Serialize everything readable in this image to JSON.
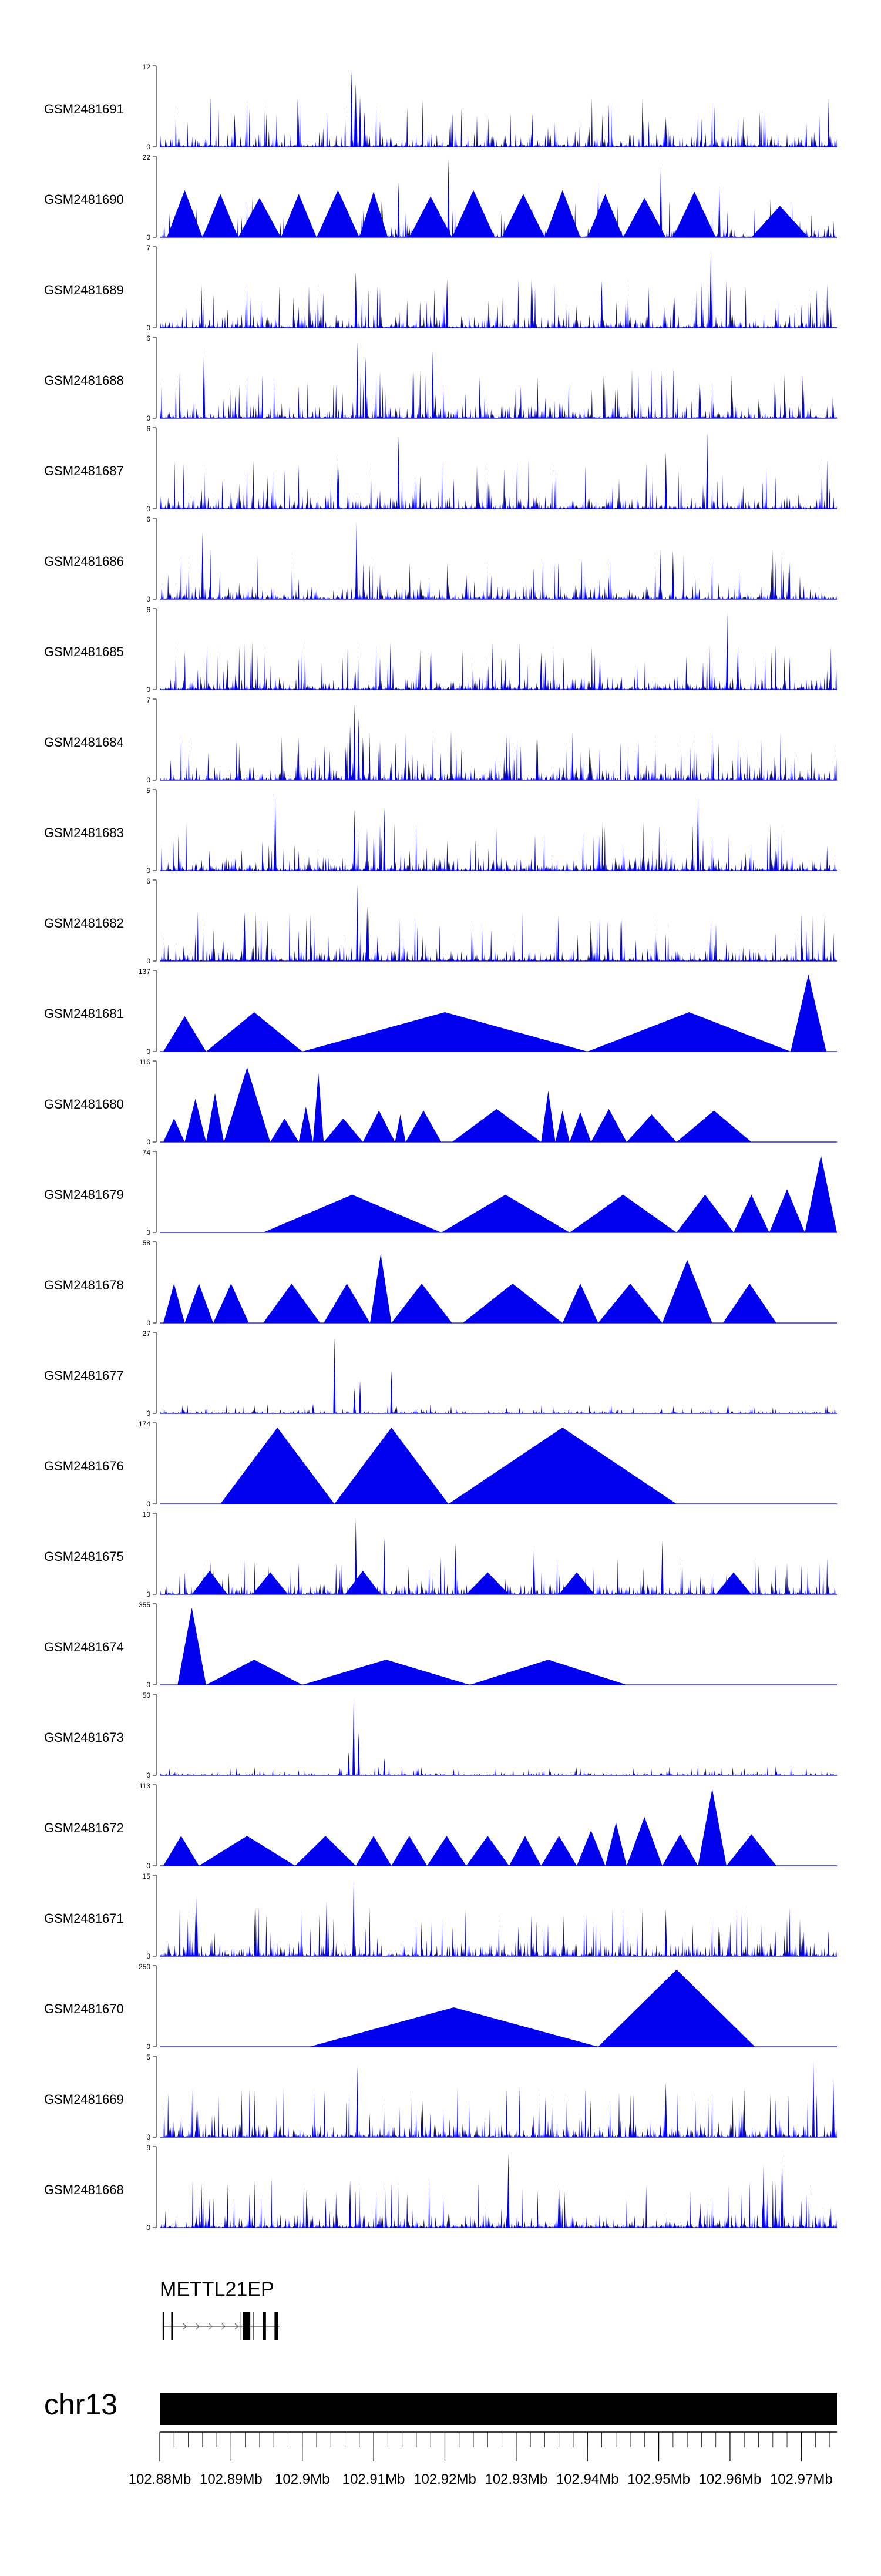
{
  "chart_data": {
    "type": "area",
    "title": "",
    "chromosome": "chr13",
    "gene": "METTL21EP",
    "xlabel": "",
    "x_unit": "Mb",
    "xlim": [
      102.88,
      102.975
    ],
    "x_tick_labels": [
      "102.88Mb",
      "102.89Mb",
      "102.9Mb",
      "102.91Mb",
      "102.92Mb",
      "102.93Mb",
      "102.94Mb",
      "102.95Mb",
      "102.96Mb",
      "102.97Mb"
    ],
    "x_tick_values": [
      102.88,
      102.89,
      102.9,
      102.91,
      102.92,
      102.93,
      102.94,
      102.95,
      102.96,
      102.97
    ],
    "fill_color": "#0000ee",
    "tracks": [
      {
        "name": "GSM2481691",
        "ymax": "12",
        "ymin": "0",
        "style": "dense",
        "spikes": [
          [
            102.9069,
            0.97
          ],
          [
            102.9075,
            0.82
          ],
          [
            102.9081,
            0.65
          ],
          [
            102.9087,
            0.45
          ],
          [
            102.8905,
            0.42
          ],
          [
            102.951,
            0.38
          ]
        ]
      },
      {
        "name": "GSM2481690",
        "ymax": "22",
        "ymin": "0",
        "style": "mixed",
        "tri": [
          [
            102.881,
            102.886,
            0.6
          ],
          [
            102.886,
            102.891,
            0.55
          ],
          [
            102.891,
            102.897,
            0.5
          ],
          [
            102.897,
            102.902,
            0.55
          ],
          [
            102.902,
            102.908,
            0.6
          ],
          [
            102.908,
            102.912,
            0.58
          ],
          [
            102.915,
            102.921,
            0.52
          ],
          [
            102.921,
            102.927,
            0.6
          ],
          [
            102.928,
            102.934,
            0.55
          ],
          [
            102.934,
            102.939,
            0.6
          ],
          [
            102.94,
            102.945,
            0.55
          ],
          [
            102.945,
            102.951,
            0.5
          ],
          [
            102.952,
            102.958,
            0.58
          ],
          [
            102.963,
            102.971,
            0.4
          ]
        ],
        "spikes": [
          [
            102.9205,
            1.0
          ],
          [
            102.9503,
            0.98
          ],
          [
            102.9135,
            0.7
          ],
          [
            102.9415,
            0.7
          ],
          [
            102.9585,
            0.66
          ]
        ]
      },
      {
        "name": "GSM2481689",
        "ymax": "7",
        "ymin": "0",
        "style": "dense",
        "spikes": [
          [
            102.9573,
            0.98
          ],
          [
            102.9075,
            0.72
          ],
          [
            102.9203,
            0.62
          ],
          [
            102.942,
            0.6
          ]
        ]
      },
      {
        "name": "GSM2481688",
        "ymax": "6",
        "ymin": "0",
        "style": "dense",
        "spikes": [
          [
            102.9077,
            0.97
          ],
          [
            102.8862,
            0.9
          ],
          [
            102.9183,
            0.85
          ],
          [
            102.9089,
            0.78
          ]
        ]
      },
      {
        "name": "GSM2481687",
        "ymax": "6",
        "ymin": "0",
        "style": "dense",
        "spikes": [
          [
            102.9568,
            0.97
          ],
          [
            102.9135,
            0.92
          ],
          [
            102.905,
            0.7
          ],
          [
            102.951,
            0.72
          ]
        ]
      },
      {
        "name": "GSM2481686",
        "ymax": "6",
        "ymin": "0",
        "style": "dense",
        "spikes": [
          [
            102.9076,
            0.98
          ],
          [
            102.886,
            0.85
          ],
          [
            102.952,
            0.62
          ]
        ]
      },
      {
        "name": "GSM2481685",
        "ymax": "6",
        "ymin": "0",
        "style": "dense",
        "spikes": [
          [
            102.9596,
            0.98
          ],
          [
            102.9611,
            0.55
          ],
          [
            102.9335,
            0.48
          ]
        ]
      },
      {
        "name": "GSM2481684",
        "ymax": "7",
        "ymin": "0",
        "style": "dense",
        "spikes": [
          [
            102.9073,
            0.97
          ],
          [
            102.9079,
            0.8
          ],
          [
            102.9067,
            0.7
          ],
          [
            102.9085,
            0.55
          ],
          [
            102.9061,
            0.42
          ]
        ]
      },
      {
        "name": "GSM2481683",
        "ymax": "5",
        "ymin": "0",
        "style": "dense",
        "spikes": [
          [
            102.8962,
            0.98
          ],
          [
            102.9555,
            0.96
          ],
          [
            102.9115,
            0.8
          ],
          [
            102.9073,
            0.78
          ]
        ]
      },
      {
        "name": "GSM2481682",
        "ymax": "6",
        "ymin": "0",
        "style": "dense",
        "spikes": [
          [
            102.9077,
            0.97
          ],
          [
            102.9091,
            0.7
          ],
          [
            102.8919,
            0.62
          ]
        ]
      },
      {
        "name": "GSM2481681",
        "ymax": "137",
        "ymin": "0",
        "style": "triangles",
        "tri": [
          [
            102.8805,
            102.8865,
            0.45
          ],
          [
            102.8865,
            102.9,
            0.5
          ],
          [
            102.9,
            102.94,
            0.5
          ],
          [
            102.94,
            102.9685,
            0.5
          ],
          [
            102.9685,
            102.9735,
            0.98
          ]
        ]
      },
      {
        "name": "GSM2481680",
        "ymax": "116",
        "ymin": "0",
        "style": "triangles",
        "tri": [
          [
            102.8805,
            102.8835,
            0.3
          ],
          [
            102.8835,
            102.8865,
            0.55
          ],
          [
            102.8865,
            102.889,
            0.62
          ],
          [
            102.889,
            102.8955,
            0.95
          ],
          [
            102.8955,
            102.8995,
            0.3
          ],
          [
            102.8995,
            102.9015,
            0.45
          ],
          [
            102.9015,
            102.903,
            0.88
          ],
          [
            102.903,
            102.9085,
            0.3
          ],
          [
            102.9085,
            102.913,
            0.4
          ],
          [
            102.913,
            102.9145,
            0.35
          ],
          [
            102.9145,
            102.9195,
            0.4
          ],
          [
            102.921,
            102.9335,
            0.42
          ],
          [
            102.9335,
            102.9355,
            0.65
          ],
          [
            102.9355,
            102.9375,
            0.4
          ],
          [
            102.9375,
            102.9405,
            0.38
          ],
          [
            102.9405,
            102.9455,
            0.42
          ],
          [
            102.9455,
            102.9525,
            0.35
          ],
          [
            102.9525,
            102.963,
            0.4
          ]
        ]
      },
      {
        "name": "GSM2481679",
        "ymax": "74",
        "ymin": "0",
        "style": "triangles",
        "tri": [
          [
            102.8945,
            102.9195,
            0.48
          ],
          [
            102.9195,
            102.9375,
            0.48
          ],
          [
            102.9375,
            102.9525,
            0.48
          ],
          [
            102.9525,
            102.9605,
            0.48
          ],
          [
            102.9605,
            102.9655,
            0.48
          ],
          [
            102.9655,
            102.9705,
            0.55
          ],
          [
            102.9705,
            102.975,
            0.98
          ]
        ]
      },
      {
        "name": "GSM2481678",
        "ymax": "58",
        "ymin": "0",
        "style": "triangles",
        "tri": [
          [
            102.8805,
            102.8835,
            0.5
          ],
          [
            102.8835,
            102.8875,
            0.5
          ],
          [
            102.8875,
            102.8925,
            0.5
          ],
          [
            102.8945,
            102.9025,
            0.5
          ],
          [
            102.903,
            102.9095,
            0.5
          ],
          [
            102.9095,
            102.9125,
            0.88
          ],
          [
            102.9125,
            102.921,
            0.5
          ],
          [
            102.9225,
            102.9365,
            0.5
          ],
          [
            102.9365,
            102.9415,
            0.5
          ],
          [
            102.9415,
            102.9505,
            0.5
          ],
          [
            102.9505,
            102.9575,
            0.8
          ],
          [
            102.959,
            102.9665,
            0.5
          ]
        ]
      },
      {
        "name": "GSM2481677",
        "ymax": "27",
        "ymin": "0",
        "style": "sparse",
        "spikes": [
          [
            102.9045,
            0.97
          ],
          [
            102.9081,
            0.42
          ],
          [
            102.9125,
            0.55
          ],
          [
            102.9073,
            0.32
          ],
          [
            102.9015,
            0.12
          ]
        ]
      },
      {
        "name": "GSM2481676",
        "ymax": "174",
        "ymin": "0",
        "style": "triangles",
        "tri": [
          [
            102.8885,
            102.9045,
            0.97
          ],
          [
            102.9045,
            102.9205,
            0.97
          ],
          [
            102.9205,
            102.9525,
            0.97
          ]
        ]
      },
      {
        "name": "GSM2481675",
        "ymax": "10",
        "ymin": "0",
        "style": "mixed",
        "tri": [
          [
            102.8845,
            102.8895,
            0.3
          ],
          [
            102.893,
            102.898,
            0.28
          ],
          [
            102.906,
            102.911,
            0.3
          ],
          [
            102.923,
            102.929,
            0.28
          ],
          [
            102.936,
            102.941,
            0.28
          ],
          [
            102.958,
            102.963,
            0.28
          ]
        ],
        "spikes": [
          [
            102.9075,
            0.96
          ],
          [
            102.9115,
            0.72
          ],
          [
            102.9215,
            0.65
          ],
          [
            102.9325,
            0.6
          ],
          [
            102.9505,
            0.68
          ]
        ]
      },
      {
        "name": "GSM2481674",
        "ymax": "355",
        "ymin": "0",
        "style": "triangles",
        "tri": [
          [
            102.8825,
            102.8865,
            0.98
          ],
          [
            102.8865,
            102.9,
            0.32
          ],
          [
            102.9,
            102.9235,
            0.32
          ],
          [
            102.9235,
            102.9455,
            0.32
          ]
        ]
      },
      {
        "name": "GSM2481673",
        "ymax": "50",
        "ymin": "0",
        "style": "sparse",
        "spikes": [
          [
            102.9072,
            0.97
          ],
          [
            102.9079,
            0.55
          ],
          [
            102.9065,
            0.3
          ],
          [
            102.9115,
            0.22
          ]
        ]
      },
      {
        "name": "GSM2481672",
        "ymax": "113",
        "ymin": "0",
        "style": "triangles",
        "tri": [
          [
            102.8805,
            102.8855,
            0.38
          ],
          [
            102.8855,
            102.899,
            0.38
          ],
          [
            102.899,
            102.9075,
            0.38
          ],
          [
            102.9075,
            102.9125,
            0.38
          ],
          [
            102.9125,
            102.9175,
            0.38
          ],
          [
            102.9175,
            102.923,
            0.38
          ],
          [
            102.923,
            102.929,
            0.38
          ],
          [
            102.929,
            102.9335,
            0.38
          ],
          [
            102.9335,
            102.9385,
            0.38
          ],
          [
            102.9385,
            102.9425,
            0.45
          ],
          [
            102.9425,
            102.9455,
            0.55
          ],
          [
            102.9455,
            102.9505,
            0.62
          ],
          [
            102.9505,
            102.9555,
            0.4
          ],
          [
            102.9555,
            102.9595,
            0.98
          ],
          [
            102.9595,
            102.9665,
            0.4
          ]
        ]
      },
      {
        "name": "GSM2481671",
        "ymax": "15",
        "ymin": "0",
        "style": "dense",
        "spikes": [
          [
            102.9072,
            0.98
          ],
          [
            102.8852,
            0.8
          ],
          [
            102.9034,
            0.7
          ],
          [
            102.951,
            0.6
          ]
        ]
      },
      {
        "name": "GSM2481670",
        "ymax": "250",
        "ymin": "0",
        "style": "triangles",
        "tri": [
          [
            102.901,
            102.9415,
            0.5
          ],
          [
            102.9415,
            102.9635,
            0.98
          ]
        ]
      },
      {
        "name": "GSM2481669",
        "ymax": "5",
        "ymin": "0",
        "style": "dense",
        "spikes": [
          [
            102.9717,
            0.97
          ],
          [
            102.9077,
            0.9
          ],
          [
            102.9745,
            0.75
          ],
          [
            102.951,
            0.7
          ]
        ]
      },
      {
        "name": "GSM2481668",
        "ymax": "9",
        "ymin": "0",
        "style": "dense",
        "spikes": [
          [
            102.9673,
            0.98
          ],
          [
            102.9289,
            0.95
          ],
          [
            102.9647,
            0.8
          ],
          [
            102.9067,
            0.6
          ],
          [
            102.936,
            0.6
          ]
        ]
      }
    ],
    "gene_model": {
      "name": "METTL21EP",
      "start": 102.8804,
      "end": 102.8968,
      "exons": [
        [
          102.8804,
          102.8806
        ],
        [
          102.8816,
          102.8818
        ],
        [
          102.8917,
          102.8927
        ],
        [
          102.8945,
          102.8949
        ],
        [
          102.8961,
          102.8966
        ]
      ],
      "inner_lines": [
        102.8914,
        102.8931
      ],
      "arrow_direction": "right"
    }
  }
}
